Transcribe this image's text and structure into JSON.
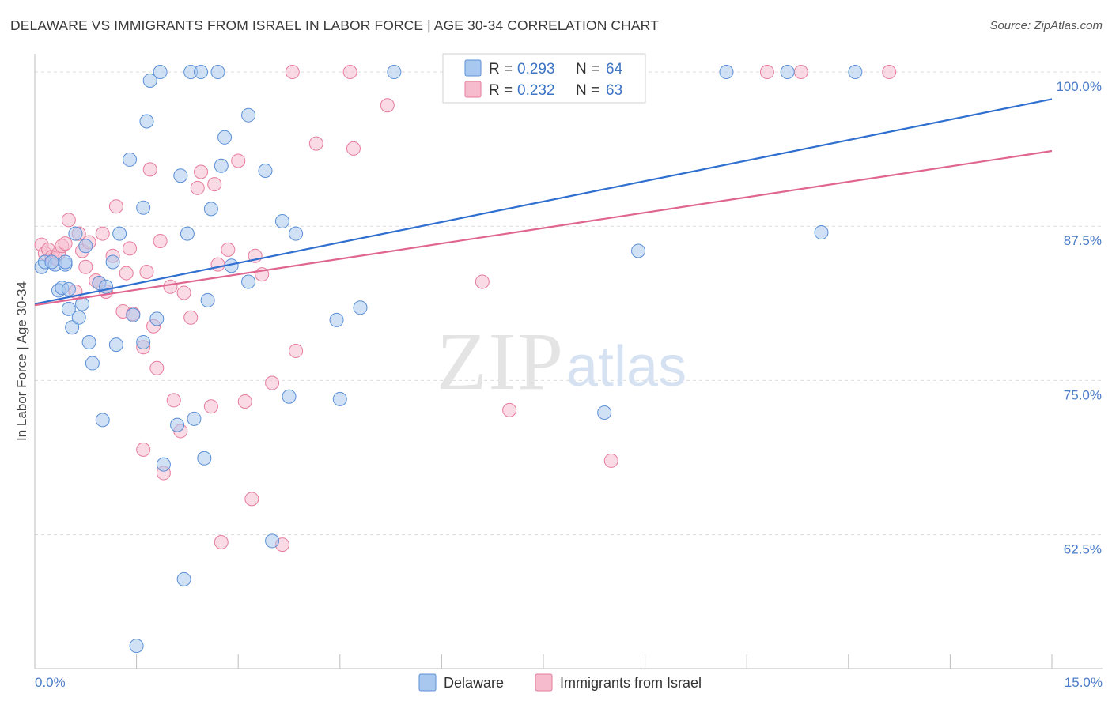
{
  "header": {
    "title": "DELAWARE VS IMMIGRANTS FROM ISRAEL IN LABOR FORCE | AGE 30-34 CORRELATION CHART",
    "source": "Source: ZipAtlas.com"
  },
  "watermark": {
    "zip": "ZIP",
    "atlas": "atlas"
  },
  "colors": {
    "delaware_fill": "#a9c8ef",
    "delaware_stroke": "#5b8fd6",
    "delaware_line": "#2f6fcf",
    "israel_fill": "#f6bccd",
    "israel_stroke": "#e67d9d",
    "israel_line": "#e0668f",
    "grid": "#dcdcdc",
    "tick_label": "#4a7cc9"
  },
  "chart_data": {
    "type": "scatter",
    "title": "DELAWARE VS IMMIGRANTS FROM ISRAEL IN LABOR FORCE | AGE 30-34 CORRELATION CHART",
    "xlabel": "",
    "ylabel": "In Labor Force | Age 30-34",
    "xlim": [
      0,
      15
    ],
    "ylim": [
      50.5,
      102.5
    ],
    "x_tick_labels": [
      {
        "value": 0,
        "label": "0.0%"
      },
      {
        "value": 15,
        "label": "15.0%"
      }
    ],
    "y_ticks": [
      {
        "value": 62.5,
        "label": "62.5%"
      },
      {
        "value": 75,
        "label": "75.0%"
      },
      {
        "value": 87.5,
        "label": "87.5%"
      },
      {
        "value": 100,
        "label": "100.0%"
      }
    ],
    "x_minor_ticks": [
      1.5,
      3,
      4.5,
      6,
      7.5,
      9,
      10.5,
      12,
      13.5,
      15
    ],
    "legend_position": "top-center",
    "legend": [
      {
        "series": "Delaware",
        "r_label": "R =",
        "r": "0.293",
        "n_label": "N =",
        "n": "64"
      },
      {
        "series": "Immigrants from Israel",
        "r_label": "R =",
        "r": "0.232",
        "n_label": "N =",
        "n": "63"
      }
    ],
    "series": [
      {
        "name": "Delaware",
        "trend": {
          "x0": 0,
          "y0": 81.2,
          "x1": 15,
          "y1": 97.8
        },
        "points": [
          [
            0.1,
            84.2
          ],
          [
            0.15,
            84.6
          ],
          [
            0.3,
            84.4
          ],
          [
            0.35,
            82.3
          ],
          [
            0.4,
            82.5
          ],
          [
            0.45,
            84.4
          ],
          [
            0.5,
            82.4
          ],
          [
            0.45,
            84.6
          ],
          [
            0.5,
            80.8
          ],
          [
            0.55,
            79.3
          ],
          [
            0.6,
            86.9
          ],
          [
            0.65,
            80.1
          ],
          [
            0.7,
            81.2
          ],
          [
            0.75,
            85.9
          ],
          [
            0.8,
            78.1
          ],
          [
            0.85,
            76.4
          ],
          [
            0.95,
            82.9
          ],
          [
            1.0,
            71.8
          ],
          [
            1.05,
            82.6
          ],
          [
            1.15,
            84.6
          ],
          [
            1.2,
            77.9
          ],
          [
            1.25,
            86.9
          ],
          [
            1.4,
            92.9
          ],
          [
            1.45,
            80.3
          ],
          [
            1.6,
            78.1
          ],
          [
            1.6,
            89.0
          ],
          [
            1.65,
            96.0
          ],
          [
            1.7,
            99.3
          ],
          [
            1.8,
            80.0
          ],
          [
            1.85,
            100.0
          ],
          [
            1.9,
            68.2
          ],
          [
            2.1,
            71.4
          ],
          [
            2.15,
            91.6
          ],
          [
            2.2,
            58.9
          ],
          [
            2.25,
            86.9
          ],
          [
            2.3,
            100.0
          ],
          [
            2.35,
            71.9
          ],
          [
            2.45,
            100.0
          ],
          [
            2.5,
            68.7
          ],
          [
            2.55,
            81.5
          ],
          [
            2.6,
            88.9
          ],
          [
            2.7,
            100.0
          ],
          [
            2.75,
            92.4
          ],
          [
            2.8,
            94.7
          ],
          [
            2.9,
            84.3
          ],
          [
            3.15,
            83.0
          ],
          [
            3.15,
            96.5
          ],
          [
            3.4,
            92.0
          ],
          [
            3.5,
            62.0
          ],
          [
            3.65,
            87.9
          ],
          [
            3.75,
            73.7
          ],
          [
            3.85,
            86.9
          ],
          [
            4.45,
            79.9
          ],
          [
            4.5,
            73.5
          ],
          [
            4.8,
            80.9
          ],
          [
            5.3,
            100.0
          ],
          [
            1.5,
            53.5
          ],
          [
            8.4,
            72.4
          ],
          [
            8.9,
            85.5
          ],
          [
            10.2,
            100.0
          ],
          [
            11.1,
            100.0
          ],
          [
            11.6,
            87.0
          ],
          [
            12.1,
            100.0
          ],
          [
            0.25,
            84.6
          ]
        ]
      },
      {
        "name": "Immigrants from Israel",
        "trend": {
          "x0": 0,
          "y0": 81.1,
          "x1": 15,
          "y1": 93.6
        },
        "points": [
          [
            0.1,
            86.0
          ],
          [
            0.15,
            85.3
          ],
          [
            0.2,
            85.6
          ],
          [
            0.25,
            85.0
          ],
          [
            0.3,
            84.9
          ],
          [
            0.35,
            85.3
          ],
          [
            0.4,
            85.9
          ],
          [
            0.45,
            86.1
          ],
          [
            0.5,
            88.0
          ],
          [
            0.6,
            82.2
          ],
          [
            0.65,
            86.9
          ],
          [
            0.7,
            85.5
          ],
          [
            0.75,
            84.2
          ],
          [
            0.8,
            86.2
          ],
          [
            0.9,
            83.1
          ],
          [
            0.95,
            82.9
          ],
          [
            1.0,
            86.9
          ],
          [
            1.05,
            82.2
          ],
          [
            1.15,
            85.1
          ],
          [
            1.2,
            89.1
          ],
          [
            1.3,
            80.6
          ],
          [
            1.35,
            83.7
          ],
          [
            1.4,
            85.7
          ],
          [
            1.45,
            80.4
          ],
          [
            1.6,
            77.7
          ],
          [
            1.6,
            69.4
          ],
          [
            1.65,
            83.8
          ],
          [
            1.7,
            92.1
          ],
          [
            1.75,
            79.4
          ],
          [
            1.8,
            76.0
          ],
          [
            1.85,
            86.3
          ],
          [
            1.9,
            67.5
          ],
          [
            2.0,
            82.6
          ],
          [
            2.05,
            73.4
          ],
          [
            2.15,
            70.9
          ],
          [
            2.2,
            82.1
          ],
          [
            2.3,
            80.1
          ],
          [
            2.4,
            90.6
          ],
          [
            2.45,
            91.9
          ],
          [
            2.6,
            72.9
          ],
          [
            2.65,
            90.9
          ],
          [
            2.7,
            84.4
          ],
          [
            2.75,
            61.9
          ],
          [
            2.85,
            85.6
          ],
          [
            3.0,
            92.8
          ],
          [
            3.1,
            73.3
          ],
          [
            3.2,
            65.4
          ],
          [
            3.25,
            85.1
          ],
          [
            3.35,
            83.6
          ],
          [
            3.5,
            74.8
          ],
          [
            3.65,
            61.7
          ],
          [
            3.8,
            100.0
          ],
          [
            3.85,
            77.4
          ],
          [
            4.15,
            94.2
          ],
          [
            4.65,
            100.0
          ],
          [
            4.7,
            93.8
          ],
          [
            5.2,
            97.3
          ],
          [
            6.6,
            83.0
          ],
          [
            7.0,
            72.6
          ],
          [
            8.5,
            68.5
          ],
          [
            10.8,
            100.0
          ],
          [
            11.3,
            100.0
          ],
          [
            12.6,
            100.0
          ]
        ]
      }
    ]
  }
}
